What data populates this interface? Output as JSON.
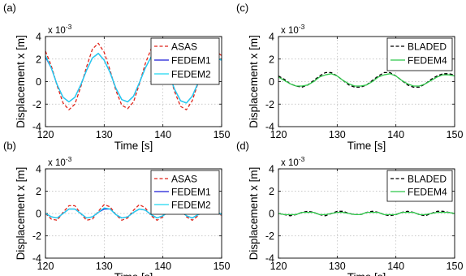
{
  "figure": {
    "panels": [
      {
        "label": "(a)"
      },
      {
        "label": "(c)"
      },
      {
        "label": "(b)"
      },
      {
        "label": "(d)"
      }
    ]
  },
  "chart_data": [
    {
      "panel": "(a)",
      "type": "line",
      "xlabel": "Time [s]",
      "ylabel": "Displacement x [m]",
      "y_multiplier": "x 10^-3",
      "xlim": [
        120,
        150
      ],
      "ylim": [
        -4,
        4
      ],
      "xticks": [
        120,
        130,
        140,
        150
      ],
      "yticks": [
        -4,
        -2,
        0,
        2,
        4
      ],
      "grid": true,
      "legend_position": "top-right",
      "series": [
        {
          "name": "ASAS",
          "color": "#e0251b",
          "dash": "dashed",
          "x": [
            120,
            121,
            122,
            123,
            124,
            125,
            126,
            127,
            128,
            129,
            130,
            131,
            132,
            133,
            134,
            135,
            136,
            137,
            138,
            139,
            140,
            141,
            142,
            143,
            144,
            145,
            146,
            147,
            148,
            149,
            150
          ],
          "y": [
            2.7,
            1.4,
            -0.4,
            -1.9,
            -2.5,
            -2.0,
            -0.5,
            1.3,
            2.9,
            3.4,
            2.6,
            1.0,
            -0.8,
            -2.1,
            -2.4,
            -1.8,
            -0.2,
            1.6,
            2.9,
            3.2,
            2.4,
            0.9,
            -0.9,
            -2.2,
            -2.5,
            -1.7,
            -0.1,
            1.6,
            2.6,
            2.7,
            2.3
          ]
        },
        {
          "name": "FEDEM1",
          "color": "#1a1ad6",
          "dash": "solid",
          "x": [
            120,
            121,
            122,
            123,
            124,
            125,
            126,
            127,
            128,
            129,
            130,
            131,
            132,
            133,
            134,
            135,
            136,
            137,
            138,
            139,
            140,
            141,
            142,
            143,
            144,
            145,
            146,
            147,
            148,
            149,
            150
          ],
          "y": [
            2.2,
            1.2,
            -0.3,
            -1.4,
            -1.8,
            -1.4,
            -0.3,
            1.0,
            2.1,
            2.5,
            1.9,
            0.8,
            -0.6,
            -1.6,
            -1.8,
            -1.3,
            -0.1,
            1.2,
            2.2,
            2.4,
            1.8,
            0.7,
            -0.7,
            -1.7,
            -1.9,
            -1.3,
            -0.1,
            1.2,
            2.0,
            2.1,
            1.9
          ]
        },
        {
          "name": "FEDEM2",
          "color": "#1fd6f0",
          "dash": "solid",
          "x": [
            120,
            121,
            122,
            123,
            124,
            125,
            126,
            127,
            128,
            129,
            130,
            131,
            132,
            133,
            134,
            135,
            136,
            137,
            138,
            139,
            140,
            141,
            142,
            143,
            144,
            145,
            146,
            147,
            148,
            149,
            150
          ],
          "y": [
            2.3,
            1.2,
            -0.3,
            -1.4,
            -1.8,
            -1.4,
            -0.3,
            1.0,
            2.1,
            2.5,
            1.9,
            0.8,
            -0.6,
            -1.6,
            -1.8,
            -1.3,
            -0.1,
            1.2,
            2.2,
            2.4,
            1.8,
            0.7,
            -0.7,
            -1.7,
            -1.9,
            -1.3,
            -0.1,
            1.2,
            2.0,
            2.1,
            1.9
          ]
        }
      ]
    },
    {
      "panel": "(c)",
      "type": "line",
      "xlabel": "Time [s]",
      "ylabel": "Displacement x [m]",
      "y_multiplier": "x 10^-3",
      "xlim": [
        120,
        150
      ],
      "ylim": [
        -4,
        4
      ],
      "xticks": [
        120,
        130,
        140,
        150
      ],
      "yticks": [
        -4,
        -2,
        0,
        2,
        4
      ],
      "grid": true,
      "legend_position": "top-right",
      "series": [
        {
          "name": "BLADED",
          "color": "#000000",
          "dash": "dashed",
          "x": [
            120,
            121,
            122,
            123,
            124,
            125,
            126,
            127,
            128,
            129,
            130,
            131,
            132,
            133,
            134,
            135,
            136,
            137,
            138,
            139,
            140,
            141,
            142,
            143,
            144,
            145,
            146,
            147,
            148,
            149,
            150
          ],
          "y": [
            0.5,
            0.2,
            -0.2,
            -0.4,
            -0.5,
            -0.3,
            0.1,
            0.5,
            0.8,
            0.8,
            0.5,
            0.1,
            -0.3,
            -0.5,
            -0.5,
            -0.3,
            0.1,
            0.5,
            0.8,
            0.8,
            0.5,
            0.1,
            -0.3,
            -0.5,
            -0.5,
            -0.2,
            0.2,
            0.5,
            0.7,
            0.7,
            0.6
          ]
        },
        {
          "name": "FEDEM4",
          "color": "#2fc84a",
          "dash": "solid",
          "x": [
            120,
            121,
            122,
            123,
            124,
            125,
            126,
            127,
            128,
            129,
            130,
            131,
            132,
            133,
            134,
            135,
            136,
            137,
            138,
            139,
            140,
            141,
            142,
            143,
            144,
            145,
            146,
            147,
            148,
            149,
            150
          ],
          "y": [
            0.4,
            0.1,
            -0.2,
            -0.4,
            -0.4,
            -0.3,
            0.0,
            0.4,
            0.6,
            0.7,
            0.5,
            0.1,
            -0.2,
            -0.4,
            -0.4,
            -0.3,
            0.0,
            0.4,
            0.6,
            0.7,
            0.5,
            0.1,
            -0.2,
            -0.4,
            -0.4,
            -0.2,
            0.1,
            0.4,
            0.6,
            0.6,
            0.5
          ]
        }
      ]
    },
    {
      "panel": "(b)",
      "type": "line",
      "xlabel": "Time [s]",
      "ylabel": "Displacement x [m]",
      "y_multiplier": "x 10^-3",
      "xlim": [
        120,
        150
      ],
      "ylim": [
        -4,
        4
      ],
      "xticks": [
        120,
        130,
        140,
        150
      ],
      "yticks": [
        -4,
        -2,
        0,
        2,
        4
      ],
      "grid": true,
      "legend_position": "top-right",
      "series": [
        {
          "name": "ASAS",
          "color": "#e0251b",
          "dash": "dashed",
          "x": [
            120,
            121,
            122,
            123,
            124,
            125,
            126,
            127,
            128,
            129,
            130,
            131,
            132,
            133,
            134,
            135,
            136,
            137,
            138,
            139,
            140,
            141,
            142,
            143,
            144,
            145,
            146,
            147,
            148,
            149,
            150
          ],
          "y": [
            0.0,
            -0.5,
            -0.6,
            0.1,
            0.7,
            0.7,
            0.0,
            -0.6,
            -0.5,
            0.2,
            0.8,
            0.6,
            -0.1,
            -0.6,
            -0.4,
            0.3,
            0.8,
            0.5,
            -0.2,
            -0.6,
            -0.3,
            0.4,
            0.8,
            0.4,
            -0.3,
            -0.6,
            -0.2,
            0.5,
            0.7,
            0.3,
            -0.2
          ]
        },
        {
          "name": "FEDEM1",
          "color": "#1a1ad6",
          "dash": "solid",
          "x": [
            120,
            121,
            122,
            123,
            124,
            125,
            126,
            127,
            128,
            129,
            130,
            131,
            132,
            133,
            134,
            135,
            136,
            137,
            138,
            139,
            140,
            141,
            142,
            143,
            144,
            145,
            146,
            147,
            148,
            149,
            150
          ],
          "y": [
            0.0,
            -0.3,
            -0.4,
            0.0,
            0.4,
            0.4,
            0.0,
            -0.4,
            -0.3,
            0.1,
            0.4,
            0.4,
            -0.1,
            -0.4,
            -0.3,
            0.1,
            0.4,
            0.3,
            -0.1,
            -0.4,
            -0.2,
            0.2,
            0.4,
            0.3,
            -0.2,
            -0.4,
            -0.1,
            0.3,
            0.4,
            0.2,
            -0.1
          ]
        },
        {
          "name": "FEDEM2",
          "color": "#1fd6f0",
          "dash": "solid",
          "x": [
            120,
            121,
            122,
            123,
            124,
            125,
            126,
            127,
            128,
            129,
            130,
            131,
            132,
            133,
            134,
            135,
            136,
            137,
            138,
            139,
            140,
            141,
            142,
            143,
            144,
            145,
            146,
            147,
            148,
            149,
            150
          ],
          "y": [
            0.0,
            -0.3,
            -0.4,
            0.0,
            0.4,
            0.4,
            0.0,
            -0.4,
            -0.3,
            0.1,
            0.5,
            0.4,
            -0.1,
            -0.4,
            -0.3,
            0.1,
            0.4,
            0.3,
            -0.1,
            -0.4,
            -0.2,
            0.2,
            0.4,
            0.3,
            -0.2,
            -0.4,
            -0.1,
            0.3,
            0.4,
            0.2,
            -0.1
          ]
        }
      ]
    },
    {
      "panel": "(d)",
      "type": "line",
      "xlabel": "Time [s]",
      "ylabel": "Displacement x [m]",
      "y_multiplier": "x 10^-3",
      "xlim": [
        120,
        150
      ],
      "ylim": [
        -4,
        4
      ],
      "xticks": [
        120,
        130,
        140,
        150
      ],
      "yticks": [
        -4,
        -2,
        0,
        2,
        4
      ],
      "grid": true,
      "legend_position": "top-right",
      "series": [
        {
          "name": "BLADED",
          "color": "#000000",
          "dash": "dashed",
          "x": [
            120,
            121,
            122,
            123,
            124,
            125,
            126,
            127,
            128,
            129,
            130,
            131,
            132,
            133,
            134,
            135,
            136,
            137,
            138,
            139,
            140,
            141,
            142,
            143,
            144,
            145,
            146,
            147,
            148,
            149,
            150
          ],
          "y": [
            0.0,
            -0.1,
            -0.2,
            -0.1,
            0.1,
            0.2,
            0.1,
            -0.1,
            -0.2,
            0.0,
            0.2,
            0.2,
            0.0,
            -0.1,
            -0.1,
            0.1,
            0.2,
            0.1,
            -0.1,
            -0.2,
            -0.1,
            0.1,
            0.2,
            0.1,
            -0.1,
            -0.2,
            0.0,
            0.2,
            0.2,
            0.1,
            0.0
          ]
        },
        {
          "name": "FEDEM4",
          "color": "#2fc84a",
          "dash": "solid",
          "x": [
            120,
            121,
            122,
            123,
            124,
            125,
            126,
            127,
            128,
            129,
            130,
            131,
            132,
            133,
            134,
            135,
            136,
            137,
            138,
            139,
            140,
            141,
            142,
            143,
            144,
            145,
            146,
            147,
            148,
            149,
            150
          ],
          "y": [
            0.0,
            -0.1,
            -0.1,
            -0.1,
            0.1,
            0.1,
            0.1,
            -0.1,
            -0.1,
            0.0,
            0.1,
            0.1,
            0.0,
            -0.1,
            -0.1,
            0.1,
            0.1,
            0.1,
            -0.1,
            -0.1,
            -0.1,
            0.1,
            0.1,
            0.1,
            -0.1,
            -0.1,
            0.0,
            0.1,
            0.1,
            0.1,
            0.0
          ]
        }
      ]
    }
  ]
}
